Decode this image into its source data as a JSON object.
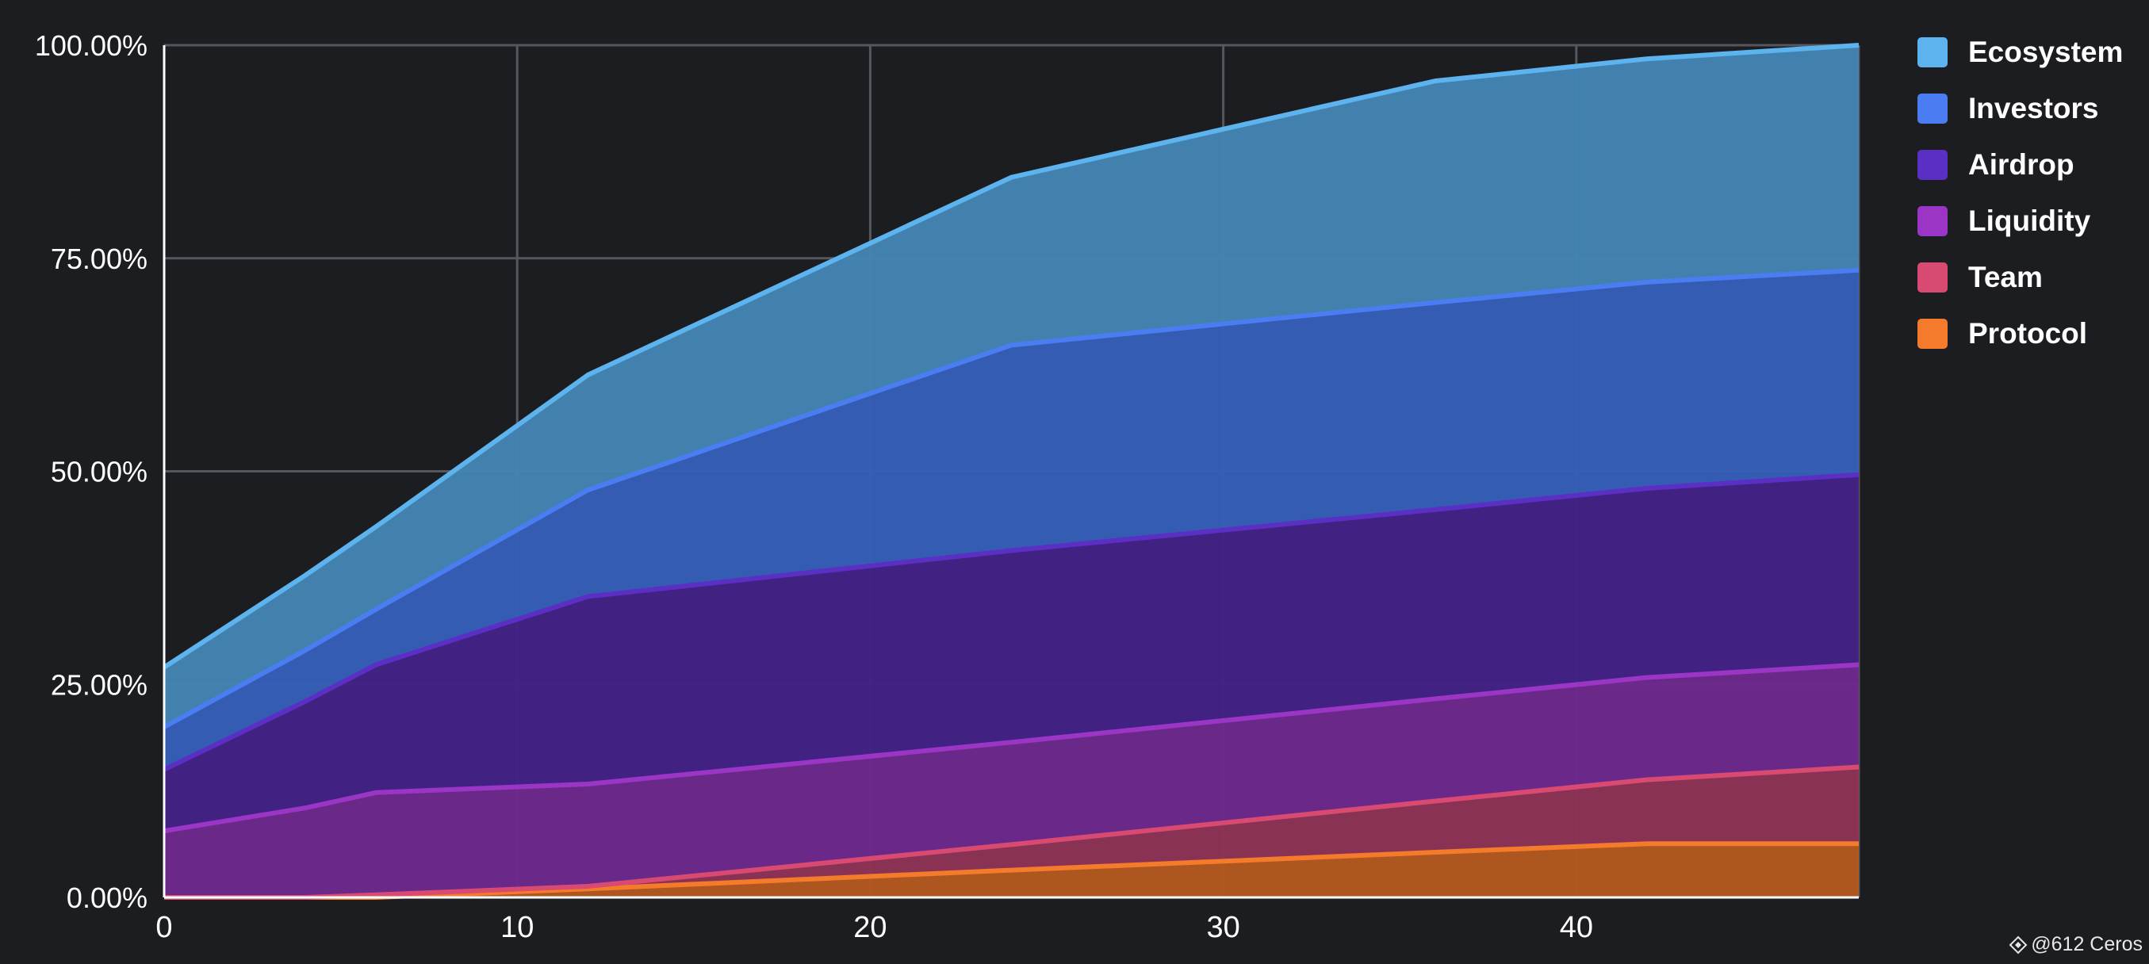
{
  "chart_data": {
    "type": "area",
    "stacked": true,
    "x": [
      0,
      4,
      6,
      12,
      24,
      36,
      42,
      48
    ],
    "xticks": [
      "0",
      "10",
      "20",
      "30",
      "40"
    ],
    "xlim": [
      0,
      48
    ],
    "yticks": [
      "0.00%",
      "25.00%",
      "50.00%",
      "75.00%",
      "100.00%"
    ],
    "ylim": [
      0,
      100
    ],
    "grid": true,
    "legend_position": "right",
    "series": [
      {
        "name": "Protocol",
        "color": "#f47b2b",
        "fill": "#b3581f",
        "values": [
          0,
          0,
          0,
          1,
          3.2,
          5.3,
          6.3,
          6.3
        ]
      },
      {
        "name": "Team",
        "color": "#d94a72",
        "fill": "#8f3355",
        "values": [
          0,
          0,
          0.3,
          0.3,
          3,
          6,
          7.5,
          9
        ]
      },
      {
        "name": "Liquidity",
        "color": "#9a35c6",
        "fill": "#6d2a8c",
        "values": [
          7.8,
          10.5,
          12,
          12,
          12,
          12,
          12,
          12
        ]
      },
      {
        "name": "Airdrop",
        "color": "#5b2ec4",
        "fill": "#432286",
        "values": [
          7.2,
          12.5,
          15,
          22,
          22.5,
          22.2,
          22.2,
          22.3
        ]
      },
      {
        "name": "Investors",
        "color": "#4a7df2",
        "fill": "#355fb8",
        "values": [
          5,
          6,
          6.5,
          12.5,
          24.1,
          24.3,
          24.2,
          24
        ]
      },
      {
        "name": "Ecosystem",
        "color": "#5cb3ee",
        "fill": "#4485b4",
        "values": [
          7,
          8.8,
          9.7,
          13.5,
          19.7,
          26,
          26.2,
          26.4
        ]
      }
    ],
    "legend_order": [
      "Ecosystem",
      "Investors",
      "Airdrop",
      "Liquidity",
      "Team",
      "Protocol"
    ]
  },
  "watermark": {
    "text": "@612 Ceros",
    "icon": "binance-diamond-icon"
  }
}
